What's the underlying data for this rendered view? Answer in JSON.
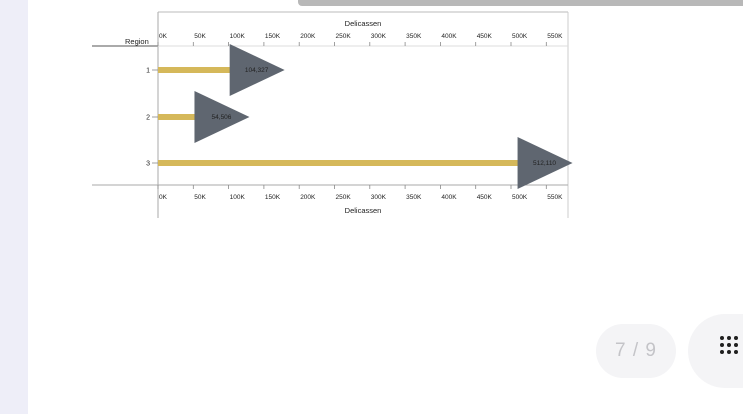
{
  "chart_data": {
    "type": "bar",
    "x_title_top": "Delicassen",
    "x_title_bottom": "Delicassen",
    "y_title": "Region",
    "categories": [
      "1",
      "2",
      "3"
    ],
    "values": [
      104327,
      54506,
      512110
    ],
    "value_labels": [
      "104,327",
      "54,506",
      "512,110"
    ],
    "xlim": [
      0,
      550000
    ],
    "x_ticks": [
      0,
      50000,
      100000,
      150000,
      200000,
      250000,
      300000,
      350000,
      400000,
      450000,
      500000,
      550000
    ],
    "x_tick_labels": [
      "0K",
      "50K",
      "100K",
      "150K",
      "200K",
      "250K",
      "300K",
      "350K",
      "400K",
      "450K",
      "500K",
      "550K"
    ],
    "grid": false,
    "colors": {
      "bar": "#d5b85a",
      "marker": "#5f6670"
    }
  },
  "pager": {
    "text": "7 / 9"
  }
}
